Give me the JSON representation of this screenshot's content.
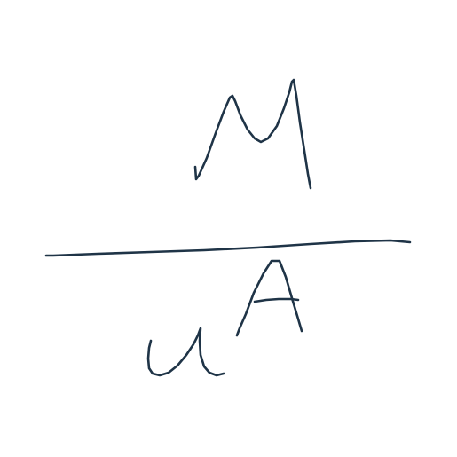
{
  "expression": {
    "numerator": "M",
    "denominator_base": "u",
    "denominator_superscript": "A"
  },
  "colors": {
    "ink": "#1f3447",
    "background": "#ffffff"
  }
}
